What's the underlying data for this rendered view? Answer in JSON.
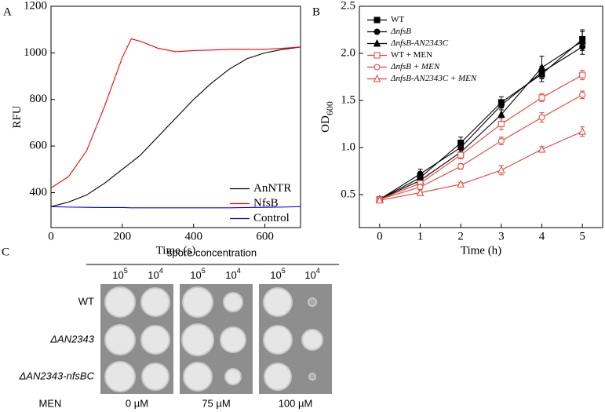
{
  "chart_data": [
    {
      "type": "line",
      "panel_label": "A",
      "x_label": "Time (s)",
      "y_label": "RFU",
      "xlim": [
        0,
        700
      ],
      "ylim": [
        250,
        1200
      ],
      "xticks": [
        0,
        200,
        400,
        600
      ],
      "yticks": [
        400,
        600,
        800,
        1000,
        1200
      ],
      "legend": "lower right",
      "x": [
        0,
        50,
        100,
        150,
        200,
        225,
        250,
        300,
        350,
        400,
        450,
        500,
        550,
        600,
        650,
        700
      ],
      "series": [
        {
          "name": "AnNTR",
          "color": "#000000",
          "values": [
            340,
            360,
            390,
            440,
            500,
            530,
            560,
            640,
            720,
            800,
            870,
            930,
            975,
            1000,
            1015,
            1025
          ]
        },
        {
          "name": "NfsB",
          "color": "#ff0000",
          "values": [
            420,
            470,
            580,
            770,
            980,
            1060,
            1050,
            1020,
            1005,
            1010,
            1012,
            1015,
            1015,
            1015,
            1020,
            1025
          ]
        },
        {
          "name": "Control",
          "color": "#0000ff",
          "values": [
            340,
            338,
            337,
            336,
            336,
            335,
            335,
            335,
            335,
            335,
            335,
            335,
            336,
            337,
            338,
            340
          ]
        }
      ]
    },
    {
      "type": "line",
      "panel_label": "B",
      "x_label": "Time (h)",
      "y_label": "OD",
      "y_label_sub": "600",
      "xlim": [
        -0.5,
        5.5
      ],
      "ylim": [
        0.15,
        2.5
      ],
      "xticks": [
        0,
        1,
        2,
        3,
        4,
        5
      ],
      "yticks": [
        0.5,
        {
          "value": 1,
          "label": "1.0"
        },
        1.5,
        {
          "value": 2,
          "label": "2.0"
        },
        2.5
      ],
      "legend": "upper left",
      "x": [
        0,
        1,
        2,
        3,
        4,
        5
      ],
      "series": [
        {
          "name": "WT",
          "color": "#000000",
          "marker": "square",
          "filled": true,
          "values": [
            0.45,
            0.68,
            1.05,
            1.48,
            1.78,
            2.15
          ],
          "errors": [
            0.02,
            0.04,
            0.06,
            0.06,
            0.08,
            0.1
          ]
        },
        {
          "name": "ΔnfsB",
          "color": "#000000",
          "marker": "circle",
          "filled": true,
          "values": [
            0.45,
            0.72,
            1.0,
            1.45,
            1.8,
            2.07
          ],
          "errors": [
            0.02,
            0.05,
            0.05,
            0.05,
            0.06,
            0.08
          ]
        },
        {
          "name": "ΔnfsB-AN2343C",
          "color": "#000000",
          "marker": "triangle",
          "filled": true,
          "values": [
            0.45,
            0.65,
            0.95,
            1.35,
            1.85,
            2.13
          ],
          "errors": [
            0.02,
            0.04,
            0.05,
            0.1,
            0.12,
            0.1
          ]
        },
        {
          "name": "WT + MEN",
          "color": "#e8413c",
          "marker": "square",
          "filled": false,
          "values": [
            0.45,
            0.62,
            0.92,
            1.25,
            1.53,
            1.77
          ],
          "errors": [
            0.02,
            0.03,
            0.04,
            0.06,
            0.04,
            0.05
          ]
        },
        {
          "name": "ΔnfsB + MEN",
          "color": "#e8413c",
          "marker": "circle",
          "filled": false,
          "values": [
            0.45,
            0.58,
            0.8,
            1.07,
            1.32,
            1.56
          ],
          "errors": [
            0.02,
            0.03,
            0.03,
            0.04,
            0.05,
            0.04
          ]
        },
        {
          "name": "ΔnfsB-AN2343C + MEN",
          "color": "#e8413c",
          "marker": "triangle",
          "filled": false,
          "values": [
            0.44,
            0.52,
            0.61,
            0.76,
            0.98,
            1.17
          ],
          "errors": [
            0.02,
            0.03,
            0.02,
            0.05,
            0.03,
            0.05
          ]
        }
      ]
    }
  ],
  "panel_c": {
    "panel_label": "C",
    "header": "spore concentration",
    "column_labels": [
      {
        "base": "10",
        "exponent": "5"
      },
      {
        "base": "10",
        "exponent": "4"
      },
      {
        "base": "10",
        "exponent": "5"
      },
      {
        "base": "10",
        "exponent": "4"
      },
      {
        "base": "10",
        "exponent": "5"
      },
      {
        "base": "10",
        "exponent": "4"
      }
    ],
    "row_labels": [
      "WT",
      "ΔAN2343",
      "ΔAN2343-nfsBC"
    ],
    "condition_label": "MEN",
    "conditions": [
      "0 µM",
      "75 µM",
      "100 µM"
    ]
  }
}
